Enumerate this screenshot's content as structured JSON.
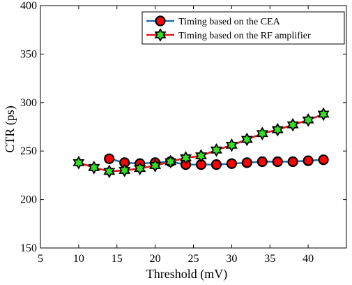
{
  "chart_data": {
    "type": "line",
    "xlabel": "Threshold (mV)",
    "ylabel": "CTR (ps)",
    "xlim": [
      5,
      45
    ],
    "ylim": [
      150,
      400
    ],
    "xticks": [
      5,
      10,
      15,
      20,
      25,
      30,
      35,
      40
    ],
    "yticks": [
      150,
      200,
      250,
      300,
      350,
      400
    ],
    "grid": false,
    "legend_position": "top-right",
    "series": [
      {
        "name": "Timing based on the CEA",
        "line_color": "#1f6fa8",
        "marker": "circle",
        "marker_fill": "#ff0000",
        "marker_edge": "#000000",
        "x": [
          14,
          16,
          18,
          20,
          22,
          24,
          26,
          28,
          30,
          32,
          34,
          36,
          38,
          40,
          42
        ],
        "y": [
          242,
          238,
          237,
          238,
          239,
          236,
          236,
          236,
          237,
          238,
          239,
          239,
          239,
          240,
          241
        ]
      },
      {
        "name": "Timing based on the RF amplifier",
        "line_color": "#e0141e",
        "marker": "hexagram",
        "marker_fill": "#33dd22",
        "marker_edge": "#000000",
        "x": [
          10,
          12,
          14,
          16,
          18,
          20,
          22,
          24,
          26,
          28,
          30,
          32,
          34,
          36,
          38,
          40,
          42
        ],
        "y": [
          238,
          233,
          229,
          230,
          232,
          235,
          239,
          243,
          245,
          251,
          256,
          262,
          268,
          272,
          277,
          282,
          288
        ]
      }
    ]
  }
}
